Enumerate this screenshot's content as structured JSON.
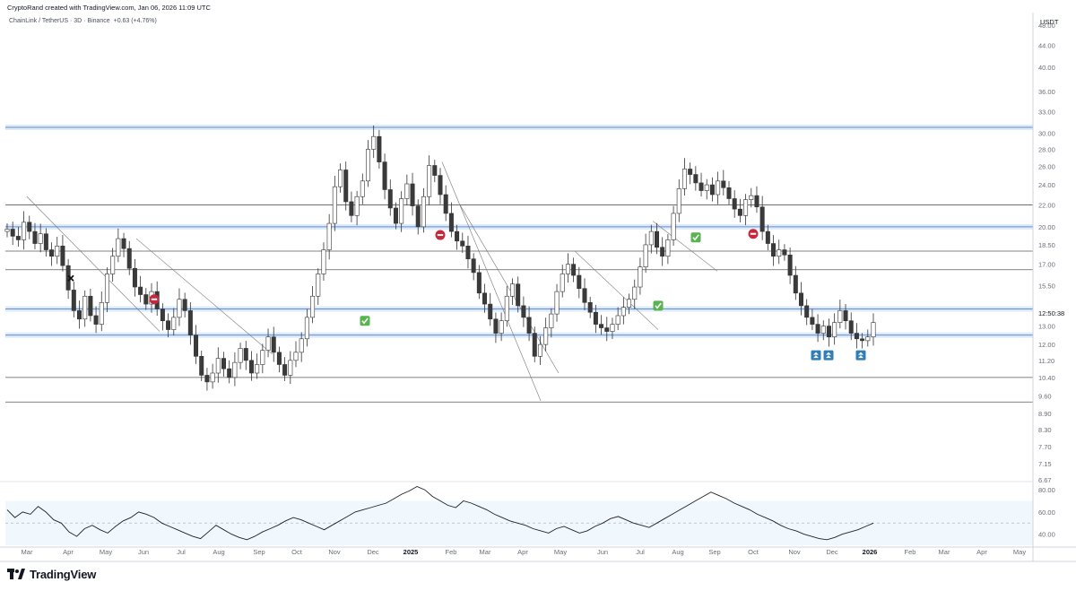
{
  "header": {
    "credit": "CryptoRand created with TradingView.com, Jan 06, 2026 11:09 UTC",
    "symbol": "ChainLink / TetherUS · 3D · Binance",
    "change": "+0.63 (+4.76%)"
  },
  "price_axis": {
    "currency": "USDT",
    "last_price_label": "12:50:38"
  },
  "branding": {
    "name": "TradingView"
  },
  "colors": {
    "up_body": "#ffffff",
    "down_body": "#3a3a3a",
    "wick": "#333333",
    "support_band": "#9fc2f0",
    "support_line": "#3d6fb8",
    "level_line": "#5a5a5a",
    "rsi_line": "#222222",
    "rsi_band": "#eaf3fc",
    "check": "#59b44f",
    "stop": "#c8283b",
    "buy_badge": "#2f7eb6"
  },
  "annotations": {
    "stop_icon": "stop-sign",
    "check_icon": "check-mark",
    "buy_icon": "double-up-arrow",
    "cross_icon": "x-mark"
  },
  "chart_data": [
    {
      "type": "candlestick",
      "title": "",
      "y_scale": "log",
      "ylim": [
        6.67,
        48.0
      ],
      "y_ticks": [
        "48.00",
        "44.00",
        "40.00",
        "36.00",
        "33.00",
        "30.00",
        "28.00",
        "26.00",
        "24.00",
        "22.00",
        "20.00",
        "18.50",
        "17.00",
        "15.50",
        "13.00",
        "12.00",
        "11.20",
        "10.40",
        "9.60",
        "8.90",
        "8.30",
        "7.70",
        "7.15",
        "6.67"
      ],
      "x_ticks": [
        "Mar",
        "Apr",
        "May",
        "Jun",
        "Jul",
        "Aug",
        "Sep",
        "Oct",
        "Nov",
        "Dec",
        "2025",
        "Feb",
        "Mar",
        "Apr",
        "May",
        "Jun",
        "Jul",
        "Aug",
        "Sep",
        "Oct",
        "Nov",
        "Dec",
        "2026",
        "Feb",
        "Mar",
        "Apr",
        "May"
      ],
      "x_tick_bold": [
        "2025",
        "2026"
      ],
      "horizontal_levels": [
        22.0,
        18.0,
        16.6,
        10.4,
        9.35
      ],
      "support_bands": [
        30.8,
        20.0,
        14.0,
        12.5
      ],
      "trendlines": [
        {
          "from": [
            "Mar",
            22.8
          ],
          "to": [
            "May",
            12.7
          ]
        },
        {
          "from": [
            "Jun",
            19.0
          ],
          "to": [
            "Aug",
            11.5
          ]
        },
        {
          "from": [
            "Feb",
            26.5
          ],
          "to": [
            "Apr",
            9.4
          ]
        },
        {
          "from": [
            "Feb",
            22.0
          ],
          "to": [
            "Apr",
            10.6
          ]
        },
        {
          "from": [
            "May",
            18.0
          ],
          "to": [
            "Jul",
            12.8
          ]
        },
        {
          "from": [
            "Aug",
            20.5
          ],
          "to": [
            "Aug",
            16.5
          ]
        }
      ],
      "markers": [
        {
          "icon": "x-mark",
          "date": "Apr",
          "price": 16.0
        },
        {
          "icon": "stop-sign",
          "date": "Jun",
          "price": 14.6
        },
        {
          "icon": "check-mark",
          "date": "Nov",
          "price": 13.3
        },
        {
          "icon": "stop-sign",
          "date": "Feb",
          "price": 19.3
        },
        {
          "icon": "check-mark",
          "date": "Jul",
          "price": 14.2
        },
        {
          "icon": "check-mark",
          "date": "Aug",
          "price": 19.1
        },
        {
          "icon": "stop-sign",
          "date": "Oct",
          "price": 19.4
        },
        {
          "icon": "double-up-arrow",
          "date": "Nov",
          "price": 11.45
        },
        {
          "icon": "double-up-arrow",
          "date": "Dec",
          "price": 11.45
        },
        {
          "icon": "double-up-arrow",
          "date": "Dec",
          "price": 11.45
        }
      ],
      "close_path": [
        19.8,
        19.2,
        18.9,
        20.4,
        19.6,
        18.6,
        19.4,
        18.1,
        17.6,
        18.4,
        16.9,
        15.2,
        13.9,
        13.4,
        14.8,
        13.6,
        13.1,
        14.4,
        16.3,
        17.6,
        19.0,
        18.2,
        16.7,
        15.4,
        14.9,
        14.3,
        15.1,
        14.0,
        13.3,
        12.8,
        13.5,
        14.6,
        13.9,
        12.5,
        11.4,
        10.5,
        10.2,
        10.6,
        11.3,
        10.8,
        10.4,
        11.1,
        11.8,
        11.2,
        10.6,
        11.0,
        11.7,
        12.4,
        11.6,
        11.0,
        10.5,
        11.2,
        11.6,
        12.3,
        13.5,
        14.8,
        16.3,
        18.1,
        20.3,
        23.8,
        25.6,
        22.3,
        21.0,
        22.8,
        24.4,
        28.0,
        29.6,
        26.5,
        23.5,
        21.7,
        20.3,
        22.6,
        24.1,
        21.9,
        20.0,
        22.8,
        26.1,
        25.0,
        23.0,
        21.2,
        19.6,
        18.8,
        18.4,
        17.4,
        16.4,
        15.0,
        14.3,
        13.4,
        12.6,
        13.3,
        14.8,
        15.6,
        14.2,
        13.5,
        12.6,
        11.4,
        12.0,
        12.9,
        13.7,
        15.1,
        16.3,
        17.0,
        16.2,
        15.3,
        14.4,
        13.8,
        13.1,
        12.9,
        12.7,
        13.1,
        13.6,
        14.1,
        14.6,
        15.4,
        16.8,
        18.5,
        19.6,
        18.3,
        17.6,
        18.9,
        21.2,
        23.6,
        25.7,
        25.1,
        24.2,
        23.4,
        24.0,
        23.0,
        24.4,
        23.7,
        22.6,
        21.6,
        21.0,
        22.5,
        22.9,
        21.8,
        19.6,
        18.6,
        17.6,
        18.1,
        17.7,
        16.2,
        15.0,
        14.2,
        13.5,
        13.1,
        12.6,
        13.0,
        12.4,
        13.2,
        13.9,
        13.3,
        12.6,
        12.3,
        12.2,
        12.4,
        13.2
      ]
    },
    {
      "type": "line",
      "title": "",
      "ylim": [
        30,
        85
      ],
      "y_ticks": [
        "80.00",
        "60.00",
        "40.00"
      ],
      "reference_lines": [
        70,
        50,
        30
      ],
      "values": [
        62,
        55,
        60,
        58,
        65,
        60,
        53,
        50,
        42,
        38,
        45,
        48,
        44,
        41,
        47,
        52,
        55,
        60,
        58,
        55,
        50,
        47,
        44,
        41,
        38,
        36,
        42,
        48,
        44,
        40,
        37,
        35,
        38,
        42,
        45,
        48,
        52,
        55,
        53,
        50,
        47,
        44,
        48,
        52,
        56,
        60,
        62,
        64,
        66,
        68,
        72,
        76,
        79,
        83,
        80,
        74,
        70,
        66,
        64,
        70,
        68,
        65,
        62,
        58,
        55,
        52,
        50,
        48,
        45,
        43,
        41,
        45,
        47,
        44,
        41,
        43,
        47,
        50,
        54,
        56,
        53,
        50,
        48,
        46,
        50,
        54,
        58,
        62,
        66,
        70,
        74,
        78,
        75,
        72,
        68,
        65,
        62,
        58,
        55,
        52,
        48,
        45,
        43,
        40,
        38,
        36,
        35,
        37,
        40,
        42,
        44,
        47,
        50
      ]
    }
  ]
}
